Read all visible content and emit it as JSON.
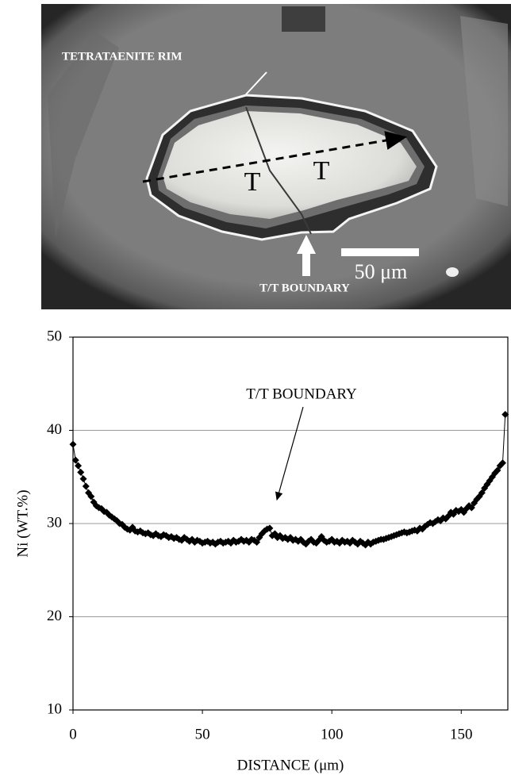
{
  "micrograph": {
    "rim_label": "TETRATAENITE RIM",
    "left_grain": "T",
    "right_grain": "T",
    "scale_label": "50 μm",
    "boundary_label": "T/T BOUNDARY"
  },
  "chart_data": {
    "type": "line",
    "x_label": "DISTANCE (μm)",
    "y_label": "Ni (WT.%)",
    "annotations": [
      "T/T BOUNDARY"
    ],
    "xlim": [
      0,
      168
    ],
    "ylim": [
      10,
      50
    ],
    "xticks": [
      0,
      50,
      100,
      150
    ],
    "yticks": [
      10,
      20,
      30,
      40,
      50
    ],
    "grid": true,
    "x": [
      0,
      1,
      2,
      3,
      4,
      5,
      6,
      7,
      8,
      9,
      10,
      11,
      12,
      13,
      14,
      15,
      16,
      17,
      18,
      19,
      20,
      21,
      22,
      23,
      24,
      25,
      26,
      27,
      28,
      29,
      30,
      31,
      32,
      33,
      34,
      35,
      36,
      37,
      38,
      39,
      40,
      41,
      42,
      43,
      44,
      45,
      46,
      47,
      48,
      49,
      50,
      51,
      52,
      53,
      54,
      55,
      56,
      57,
      58,
      59,
      60,
      61,
      62,
      63,
      64,
      65,
      66,
      67,
      68,
      69,
      70,
      71,
      72,
      73,
      74,
      75,
      76,
      77,
      78,
      79,
      80,
      81,
      82,
      83,
      84,
      85,
      86,
      87,
      88,
      89,
      90,
      91,
      92,
      93,
      94,
      95,
      96,
      97,
      98,
      99,
      100,
      101,
      102,
      103,
      104,
      105,
      106,
      107,
      108,
      109,
      110,
      111,
      112,
      113,
      114,
      115,
      116,
      117,
      118,
      119,
      120,
      121,
      122,
      123,
      124,
      125,
      126,
      127,
      128,
      129,
      130,
      131,
      132,
      133,
      134,
      135,
      136,
      137,
      138,
      139,
      140,
      141,
      142,
      143,
      144,
      145,
      146,
      147,
      148,
      149,
      150,
      151,
      152,
      153,
      154,
      155,
      156,
      157,
      158,
      159,
      160,
      161,
      162,
      163,
      164,
      165,
      166,
      167
    ],
    "series": [
      {
        "color": "#000000",
        "values": [
          38.5,
          36.8,
          36.2,
          35.5,
          34.8,
          34.0,
          33.3,
          32.9,
          32.3,
          31.9,
          31.7,
          31.6,
          31.3,
          31.2,
          30.9,
          30.7,
          30.5,
          30.3,
          30.0,
          29.9,
          29.6,
          29.4,
          29.3,
          29.6,
          29.2,
          29.1,
          29.2,
          29.0,
          28.9,
          29.0,
          28.8,
          28.7,
          28.9,
          28.7,
          28.6,
          28.8,
          28.7,
          28.5,
          28.6,
          28.4,
          28.5,
          28.3,
          28.2,
          28.5,
          28.3,
          28.1,
          28.3,
          28.0,
          28.2,
          28.1,
          27.9,
          28.0,
          28.1,
          27.9,
          28.0,
          27.8,
          28.0,
          28.1,
          27.9,
          28.0,
          28.1,
          27.9,
          28.2,
          28.0,
          28.1,
          28.3,
          28.1,
          28.2,
          28.0,
          28.3,
          28.2,
          28.0,
          28.5,
          28.9,
          29.2,
          29.4,
          29.5,
          28.7,
          28.9,
          28.5,
          28.7,
          28.4,
          28.5,
          28.3,
          28.5,
          28.2,
          28.3,
          28.1,
          28.3,
          28.0,
          27.8,
          28.1,
          28.3,
          28.0,
          27.9,
          28.2,
          28.6,
          28.2,
          28.0,
          28.1,
          28.3,
          28.0,
          28.1,
          27.9,
          28.2,
          28.0,
          28.1,
          27.9,
          28.2,
          28.0,
          27.8,
          28.1,
          27.9,
          27.7,
          28.0,
          27.8,
          28.0,
          28.1,
          28.2,
          28.3,
          28.3,
          28.4,
          28.5,
          28.6,
          28.7,
          28.8,
          28.9,
          29.0,
          29.1,
          29.0,
          29.1,
          29.2,
          29.3,
          29.2,
          29.5,
          29.4,
          29.7,
          29.9,
          30.1,
          30.0,
          30.2,
          30.4,
          30.3,
          30.6,
          30.5,
          30.8,
          31.2,
          31.0,
          31.4,
          31.3,
          31.5,
          31.2,
          31.6,
          31.9,
          31.7,
          32.2,
          32.6,
          32.9,
          33.3,
          33.8,
          34.2,
          34.6,
          35.0,
          35.4,
          35.7,
          36.2,
          36.5,
          41.7
        ]
      }
    ]
  }
}
